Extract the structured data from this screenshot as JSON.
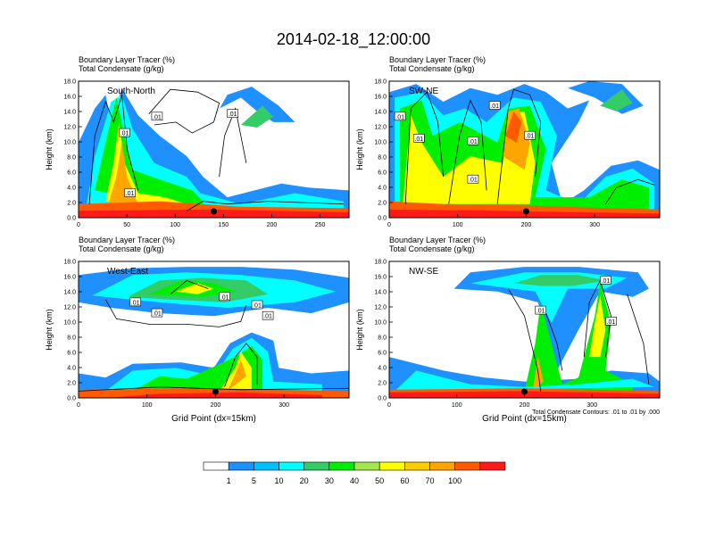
{
  "title": "2014-02-18_12:00:00",
  "chart_data": [
    {
      "type": "heatmap",
      "panel_label": "South-North",
      "subtitle_lines": [
        "Boundary Layer Tracer   (%)",
        "Total Condensate   (g/kg)"
      ],
      "ylabel": "Height (km)",
      "xlabel": "",
      "xlim": [
        0,
        280
      ],
      "ylim": [
        0,
        18
      ],
      "x_ticks": [
        "0",
        "50",
        "100",
        "150",
        "200",
        "250"
      ],
      "y_ticks": [
        "0.0",
        "2.0",
        "4.0",
        "6.0",
        "8.0",
        "10.0",
        "12.0",
        "14.0",
        "16.0",
        "18.0"
      ],
      "contour_labels": [
        ".01",
        ".01",
        ".01",
        ".01"
      ],
      "marker_x": 140,
      "contour_note": ""
    },
    {
      "type": "heatmap",
      "panel_label": "SW-NE",
      "subtitle_lines": [
        "Boundary Layer Tracer   (%)",
        "Total Condensate   (g/kg)"
      ],
      "ylabel": "Height (km)",
      "xlabel": "",
      "xlim": [
        0,
        395
      ],
      "ylim": [
        0,
        18
      ],
      "x_ticks": [
        "0",
        "100",
        "200",
        "300"
      ],
      "y_ticks": [
        "0.0",
        "2.0",
        "4.0",
        "6.0",
        "8.0",
        "10.0",
        "12.0",
        "14.0",
        "16.0",
        "18.0"
      ],
      "contour_labels": [
        ".01",
        ".01",
        ".01",
        ".01",
        ".01",
        ".01"
      ],
      "marker_x": 200,
      "contour_note": ""
    },
    {
      "type": "heatmap",
      "panel_label": "West-East",
      "subtitle_lines": [
        "Boundary Layer Tracer   (%)",
        "Total Condensate   (g/kg)"
      ],
      "ylabel": "Height (km)",
      "xlabel": "Grid Point (dx=15km)",
      "xlim": [
        0,
        395
      ],
      "ylim": [
        0,
        18
      ],
      "x_ticks": [
        "0",
        "100",
        "200",
        "300"
      ],
      "y_ticks": [
        "0.0",
        "2.0",
        "4.0",
        "6.0",
        "8.0",
        "10.0",
        "12.0",
        "14.0",
        "16.0",
        "18.0"
      ],
      "contour_labels": [
        ".01",
        ".01",
        ".01",
        ".01",
        ".01"
      ],
      "marker_x": 200,
      "contour_note": ""
    },
    {
      "type": "heatmap",
      "panel_label": "NW-SE",
      "subtitle_lines": [
        "Boundary Layer Tracer   (%)",
        "Total Condensate   (g/kg)"
      ],
      "ylabel": "Height (km)",
      "xlabel": "Grid Point (dx=15km)",
      "xlim": [
        0,
        400
      ],
      "ylim": [
        0,
        18
      ],
      "x_ticks": [
        "0",
        "100",
        "200",
        "300"
      ],
      "y_ticks": [
        "0.0",
        "2.0",
        "4.0",
        "6.0",
        "8.0",
        "10.0",
        "12.0",
        "14.0",
        "16.0",
        "18.0"
      ],
      "contour_labels": [
        ".01",
        ".01",
        ".01"
      ],
      "marker_x": 200,
      "contour_note": "Total Condensate Contours: .01 to .01 by .000"
    }
  ],
  "colorbar": {
    "labels": [
      "1",
      "5",
      "10",
      "20",
      "30",
      "40",
      "50",
      "60",
      "70",
      "100"
    ],
    "colors": [
      "#ffffff",
      "#1e90ff",
      "#00bfff",
      "#00ffff",
      "#33cc66",
      "#00ee00",
      "#a6e64d",
      "#ffff00",
      "#ffcc00",
      "#ffa500",
      "#ff5a00",
      "#ff1a1a"
    ]
  }
}
